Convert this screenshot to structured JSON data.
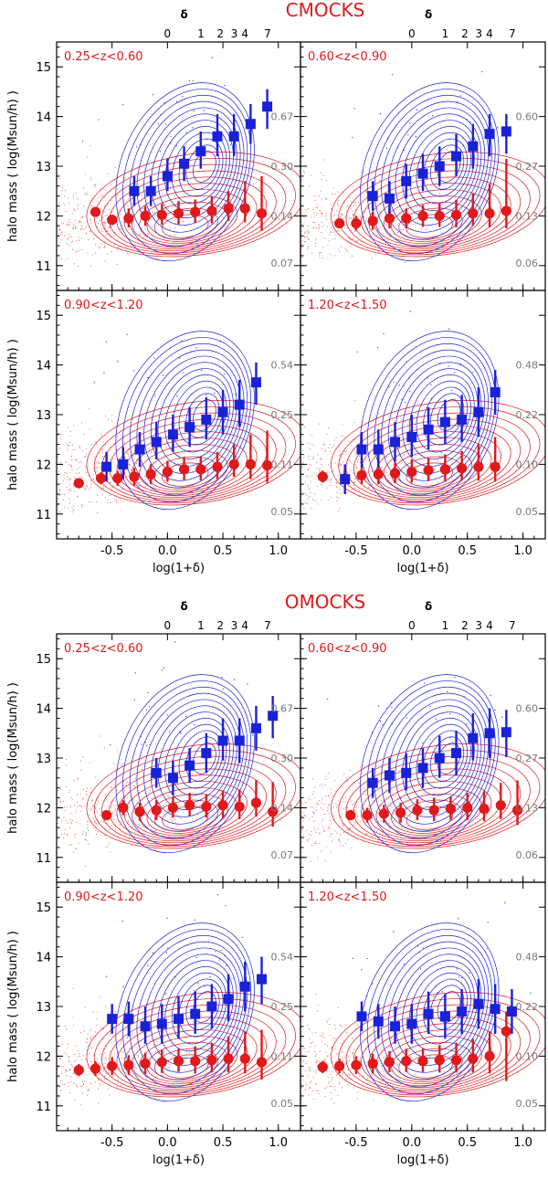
{
  "colors": {
    "halo_color": "#e0191b",
    "central_color": "#1a22d8",
    "axis_color": "#000000",
    "level_text_color": "#777777",
    "title_color": "#e0191b"
  },
  "figures": [
    {
      "title": "CMOCKS",
      "delta_label": "δ",
      "delta_ticks": [
        "0",
        "1",
        "2",
        "3",
        "4",
        "7"
      ],
      "delta_tick_x": [
        0.0,
        0.301,
        0.477,
        0.602,
        0.699,
        0.903
      ],
      "ylabel": "halo mass ( log(Msun/h) )",
      "xlabel": "log(1+δ)",
      "xtick_labels": [
        "-0.5",
        "0.0",
        "0.5",
        "1.0"
      ],
      "ytick_labels": [
        "11",
        "12",
        "13",
        "14",
        "15"
      ]
    },
    {
      "title": "OMOCKS",
      "delta_label": "δ",
      "delta_ticks": [
        "0",
        "1",
        "2",
        "3",
        "4",
        "7"
      ],
      "delta_tick_x": [
        0.0,
        0.301,
        0.477,
        0.602,
        0.699,
        0.903
      ],
      "ylabel": "halo mass ( log(Msun/h) )",
      "xlabel": "log(1+δ)",
      "xtick_labels": [
        "-0.5",
        "0.0",
        "0.5",
        "1.0"
      ],
      "ytick_labels": [
        "11",
        "12",
        "13",
        "14",
        "15"
      ]
    }
  ],
  "chart_data": [
    {
      "type": "scatter",
      "figure": "CMOCKS",
      "panel": "0.25<z<0.60",
      "xlabel": "log(1+δ)",
      "ylabel": "halo mass ( log(Msun/h) )",
      "xlim": [
        -1.0,
        1.2
      ],
      "ylim": [
        10.5,
        15.5
      ],
      "contour_levels": [
        "0.67",
        "0.30",
        "0.14",
        "0.07"
      ],
      "series": [
        {
          "name": "red",
          "marker": "circle",
          "x": [
            -0.65,
            -0.5,
            -0.35,
            -0.2,
            -0.05,
            0.1,
            0.25,
            0.4,
            0.55,
            0.7,
            0.85
          ],
          "y": [
            12.08,
            11.92,
            11.95,
            12.0,
            12.02,
            12.05,
            12.08,
            12.1,
            12.15,
            12.15,
            12.05
          ],
          "err_lo": [
            0.0,
            0.0,
            0.18,
            0.2,
            0.2,
            0.22,
            0.22,
            0.25,
            0.25,
            0.28,
            0.35
          ],
          "err_hi": [
            0.0,
            0.0,
            0.2,
            0.2,
            0.22,
            0.25,
            0.25,
            0.3,
            0.35,
            0.55,
            0.75
          ]
        },
        {
          "name": "blue",
          "marker": "square",
          "x": [
            -0.3,
            -0.15,
            0.0,
            0.15,
            0.3,
            0.45,
            0.6,
            0.75,
            0.9
          ],
          "y": [
            12.5,
            12.5,
            12.8,
            13.05,
            13.3,
            13.6,
            13.6,
            13.85,
            14.2
          ],
          "err_lo": [
            0.3,
            0.3,
            0.3,
            0.35,
            0.35,
            0.4,
            0.4,
            0.4,
            0.45
          ],
          "err_hi": [
            0.3,
            0.3,
            0.35,
            0.35,
            0.4,
            0.45,
            0.45,
            0.4,
            0.35
          ]
        }
      ]
    },
    {
      "type": "scatter",
      "figure": "CMOCKS",
      "panel": "0.60<z<0.90",
      "xlabel": "log(1+δ)",
      "ylabel": "halo mass ( log(Msun/h) )",
      "xlim": [
        -1.0,
        1.2
      ],
      "ylim": [
        10.5,
        15.5
      ],
      "contour_levels": [
        "0.60",
        "0.27",
        "0.13",
        "0.06"
      ],
      "series": [
        {
          "name": "red",
          "marker": "circle",
          "x": [
            -0.65,
            -0.5,
            -0.35,
            -0.2,
            -0.05,
            0.1,
            0.25,
            0.4,
            0.55,
            0.7,
            0.85
          ],
          "y": [
            11.85,
            11.85,
            11.9,
            11.95,
            11.95,
            12.0,
            12.0,
            12.02,
            12.05,
            12.05,
            12.1
          ],
          "err_lo": [
            0.1,
            0.15,
            0.18,
            0.2,
            0.2,
            0.22,
            0.22,
            0.25,
            0.25,
            0.28,
            0.35
          ],
          "err_hi": [
            0.1,
            0.15,
            0.18,
            0.2,
            0.2,
            0.22,
            0.25,
            0.3,
            0.4,
            0.6,
            1.05
          ]
        },
        {
          "name": "blue",
          "marker": "square",
          "x": [
            -0.35,
            -0.2,
            -0.05,
            0.1,
            0.25,
            0.4,
            0.55,
            0.7,
            0.85
          ],
          "y": [
            12.4,
            12.35,
            12.7,
            12.85,
            13.0,
            13.2,
            13.4,
            13.65,
            13.7
          ],
          "err_lo": [
            0.3,
            0.3,
            0.35,
            0.35,
            0.4,
            0.4,
            0.45,
            0.45,
            0.45
          ],
          "err_hi": [
            0.3,
            0.35,
            0.35,
            0.4,
            0.4,
            0.45,
            0.45,
            0.4,
            0.35
          ]
        }
      ]
    },
    {
      "type": "scatter",
      "figure": "CMOCKS",
      "panel": "0.90<z<1.20",
      "xlabel": "log(1+δ)",
      "ylabel": "halo mass ( log(Msun/h) )",
      "xlim": [
        -1.0,
        1.2
      ],
      "ylim": [
        10.5,
        15.5
      ],
      "contour_levels": [
        "0.54",
        "0.25",
        "0.11",
        "0.05"
      ],
      "series": [
        {
          "name": "red",
          "marker": "circle",
          "x": [
            -0.8,
            -0.6,
            -0.45,
            -0.3,
            -0.15,
            0.0,
            0.15,
            0.3,
            0.45,
            0.6,
            0.75,
            0.9
          ],
          "y": [
            11.62,
            11.72,
            11.72,
            11.75,
            11.8,
            11.85,
            11.9,
            11.9,
            11.95,
            12.0,
            12.0,
            11.98
          ],
          "err_lo": [
            0.1,
            0.12,
            0.15,
            0.18,
            0.2,
            0.2,
            0.22,
            0.22,
            0.25,
            0.25,
            0.3,
            0.35
          ],
          "err_hi": [
            0.1,
            0.12,
            0.15,
            0.18,
            0.2,
            0.22,
            0.25,
            0.25,
            0.3,
            0.4,
            0.6,
            0.7
          ]
        },
        {
          "name": "blue",
          "marker": "square",
          "x": [
            -0.55,
            -0.4,
            -0.25,
            -0.1,
            0.05,
            0.2,
            0.35,
            0.5,
            0.65,
            0.8
          ],
          "y": [
            11.95,
            12.0,
            12.3,
            12.45,
            12.6,
            12.75,
            12.9,
            13.05,
            13.2,
            13.65
          ],
          "err_lo": [
            0.3,
            0.3,
            0.35,
            0.35,
            0.35,
            0.4,
            0.4,
            0.45,
            0.45,
            0.45
          ],
          "err_hi": [
            0.3,
            0.35,
            0.35,
            0.4,
            0.4,
            0.4,
            0.45,
            0.45,
            0.5,
            0.4
          ]
        }
      ]
    },
    {
      "type": "scatter",
      "figure": "CMOCKS",
      "panel": "1.20<z<1.50",
      "xlabel": "log(1+δ)",
      "ylabel": "halo mass ( log(Msun/h) )",
      "xlim": [
        -1.0,
        1.2
      ],
      "ylim": [
        10.5,
        15.5
      ],
      "contour_levels": [
        "0.48",
        "0.22",
        "0.10",
        "0.05"
      ],
      "series": [
        {
          "name": "red",
          "marker": "circle",
          "x": [
            -0.8,
            -0.6,
            -0.45,
            -0.3,
            -0.15,
            0.0,
            0.15,
            0.3,
            0.45,
            0.6,
            0.75
          ],
          "y": [
            11.75,
            11.72,
            11.78,
            11.8,
            11.82,
            11.85,
            11.88,
            11.9,
            11.92,
            11.95,
            11.95
          ],
          "err_lo": [
            0.12,
            0.15,
            0.18,
            0.2,
            0.2,
            0.22,
            0.22,
            0.25,
            0.25,
            0.28,
            0.3
          ],
          "err_hi": [
            0.12,
            0.15,
            0.18,
            0.2,
            0.22,
            0.25,
            0.25,
            0.3,
            0.35,
            0.45,
            0.6
          ]
        },
        {
          "name": "blue",
          "marker": "square",
          "x": [
            -0.6,
            -0.45,
            -0.3,
            -0.15,
            0.0,
            0.15,
            0.3,
            0.45,
            0.6,
            0.75
          ],
          "y": [
            11.7,
            12.3,
            12.3,
            12.45,
            12.55,
            12.7,
            12.85,
            12.9,
            13.05,
            13.45
          ],
          "err_lo": [
            0.3,
            0.35,
            0.35,
            0.4,
            0.4,
            0.4,
            0.45,
            0.45,
            0.5,
            0.45
          ],
          "err_hi": [
            0.3,
            0.35,
            0.4,
            0.4,
            0.45,
            0.45,
            0.45,
            0.5,
            0.5,
            0.45
          ]
        }
      ]
    },
    {
      "type": "scatter",
      "figure": "OMOCKS",
      "panel": "0.25<z<0.60",
      "xlabel": "log(1+δ)",
      "ylabel": "halo mass ( log(Msun/h) )",
      "xlim": [
        -1.0,
        1.2
      ],
      "ylim": [
        10.5,
        15.5
      ],
      "contour_levels": [
        "0.67",
        "0.30",
        "0.14",
        "0.07"
      ],
      "series": [
        {
          "name": "red",
          "marker": "circle",
          "x": [
            -0.55,
            -0.4,
            -0.25,
            -0.1,
            0.05,
            0.2,
            0.35,
            0.5,
            0.65,
            0.8,
            0.95
          ],
          "y": [
            11.85,
            12.0,
            11.92,
            11.95,
            12.0,
            12.05,
            12.02,
            12.05,
            12.02,
            12.1,
            11.92
          ],
          "err_lo": [
            0.1,
            0.15,
            0.18,
            0.2,
            0.2,
            0.22,
            0.22,
            0.25,
            0.25,
            0.28,
            0.3
          ],
          "err_hi": [
            0.1,
            0.15,
            0.18,
            0.2,
            0.22,
            0.25,
            0.25,
            0.3,
            0.35,
            0.45,
            0.6
          ]
        },
        {
          "name": "blue",
          "marker": "square",
          "x": [
            -0.1,
            0.05,
            0.2,
            0.35,
            0.5,
            0.65,
            0.8,
            0.95
          ],
          "y": [
            12.7,
            12.6,
            12.85,
            13.1,
            13.35,
            13.35,
            13.6,
            13.85
          ],
          "err_lo": [
            0.3,
            0.35,
            0.35,
            0.4,
            0.4,
            0.45,
            0.45,
            0.45
          ],
          "err_hi": [
            0.3,
            0.35,
            0.35,
            0.4,
            0.45,
            0.45,
            0.45,
            0.4
          ]
        }
      ]
    },
    {
      "type": "scatter",
      "figure": "OMOCKS",
      "panel": "0.60<z<0.90",
      "xlabel": "log(1+δ)",
      "ylabel": "halo mass ( log(Msun/h) )",
      "xlim": [
        -1.0,
        1.2
      ],
      "ylim": [
        10.5,
        15.5
      ],
      "contour_levels": [
        "0.60",
        "0.27",
        "0.13",
        "0.06"
      ],
      "series": [
        {
          "name": "red",
          "marker": "circle",
          "x": [
            -0.55,
            -0.4,
            -0.25,
            -0.1,
            0.05,
            0.2,
            0.35,
            0.5,
            0.65,
            0.8,
            0.95
          ],
          "y": [
            11.85,
            11.85,
            11.88,
            11.9,
            11.95,
            11.95,
            11.98,
            12.0,
            11.98,
            12.05,
            11.95
          ],
          "err_lo": [
            0.1,
            0.15,
            0.18,
            0.2,
            0.2,
            0.22,
            0.22,
            0.25,
            0.25,
            0.28,
            0.3
          ],
          "err_hi": [
            0.1,
            0.15,
            0.18,
            0.2,
            0.22,
            0.25,
            0.25,
            0.3,
            0.35,
            0.45,
            0.6
          ]
        },
        {
          "name": "blue",
          "marker": "square",
          "x": [
            -0.35,
            -0.2,
            -0.05,
            0.1,
            0.25,
            0.4,
            0.55,
            0.7,
            0.85
          ],
          "y": [
            12.5,
            12.65,
            12.7,
            12.8,
            13.0,
            13.1,
            13.4,
            13.5,
            13.52
          ],
          "err_lo": [
            0.3,
            0.35,
            0.35,
            0.4,
            0.4,
            0.45,
            0.45,
            0.5,
            0.5
          ],
          "err_hi": [
            0.3,
            0.35,
            0.4,
            0.4,
            0.45,
            0.45,
            0.5,
            0.5,
            0.45
          ]
        }
      ]
    },
    {
      "type": "scatter",
      "figure": "OMOCKS",
      "panel": "0.90<z<1.20",
      "xlabel": "log(1+δ)",
      "ylabel": "halo mass ( log(Msun/h) )",
      "xlim": [
        -1.0,
        1.2
      ],
      "ylim": [
        10.5,
        15.5
      ],
      "contour_levels": [
        "0.54",
        "0.25",
        "0.11",
        "0.05"
      ],
      "series": [
        {
          "name": "red",
          "marker": "circle",
          "x": [
            -0.8,
            -0.65,
            -0.5,
            -0.35,
            -0.2,
            -0.05,
            0.1,
            0.25,
            0.4,
            0.55,
            0.7,
            0.85
          ],
          "y": [
            11.72,
            11.75,
            11.8,
            11.82,
            11.85,
            11.88,
            11.9,
            11.9,
            11.92,
            11.95,
            11.95,
            11.88
          ],
          "err_lo": [
            0.12,
            0.15,
            0.18,
            0.2,
            0.2,
            0.22,
            0.22,
            0.25,
            0.25,
            0.28,
            0.3,
            0.35
          ],
          "err_hi": [
            0.12,
            0.15,
            0.18,
            0.2,
            0.22,
            0.25,
            0.25,
            0.3,
            0.35,
            0.45,
            0.55,
            0.65
          ]
        },
        {
          "name": "blue",
          "marker": "square",
          "x": [
            -0.5,
            -0.35,
            -0.2,
            -0.05,
            0.1,
            0.25,
            0.4,
            0.55,
            0.7,
            0.85
          ],
          "y": [
            12.75,
            12.75,
            12.6,
            12.65,
            12.75,
            12.85,
            13.0,
            13.15,
            13.4,
            13.55
          ],
          "err_lo": [
            0.3,
            0.35,
            0.35,
            0.4,
            0.4,
            0.4,
            0.45,
            0.45,
            0.5,
            0.5
          ],
          "err_hi": [
            0.3,
            0.35,
            0.4,
            0.4,
            0.45,
            0.45,
            0.45,
            0.5,
            0.5,
            0.45
          ]
        }
      ]
    },
    {
      "type": "scatter",
      "figure": "OMOCKS",
      "panel": "1.20<z<1.50",
      "xlabel": "log(1+δ)",
      "ylabel": "halo mass ( log(Msun/h) )",
      "xlim": [
        -1.0,
        1.2
      ],
      "ylim": [
        10.5,
        15.5
      ],
      "contour_levels": [
        "0.48",
        "0.22",
        "0.10",
        "0.05"
      ],
      "series": [
        {
          "name": "red",
          "marker": "circle",
          "x": [
            -0.8,
            -0.65,
            -0.5,
            -0.35,
            -0.2,
            -0.05,
            0.1,
            0.25,
            0.4,
            0.55,
            0.7,
            0.85
          ],
          "y": [
            11.78,
            11.8,
            11.82,
            11.85,
            11.88,
            11.9,
            11.9,
            11.92,
            11.92,
            11.95,
            12.0,
            12.5
          ],
          "err_lo": [
            0.12,
            0.15,
            0.18,
            0.2,
            0.2,
            0.22,
            0.22,
            0.25,
            0.25,
            0.28,
            0.35,
            1.0
          ],
          "err_hi": [
            0.12,
            0.15,
            0.18,
            0.2,
            0.22,
            0.25,
            0.25,
            0.3,
            0.35,
            0.4,
            0.5,
            0.4
          ]
        },
        {
          "name": "blue",
          "marker": "square",
          "x": [
            -0.45,
            -0.3,
            -0.15,
            0.0,
            0.15,
            0.3,
            0.45,
            0.6,
            0.75,
            0.9
          ],
          "y": [
            12.8,
            12.7,
            12.6,
            12.65,
            12.85,
            12.8,
            12.9,
            13.05,
            12.95,
            12.9
          ],
          "err_lo": [
            0.3,
            0.35,
            0.35,
            0.4,
            0.4,
            0.45,
            0.45,
            0.5,
            0.5,
            0.45
          ],
          "err_hi": [
            0.3,
            0.35,
            0.4,
            0.4,
            0.45,
            0.45,
            0.45,
            0.5,
            0.5,
            0.45
          ]
        }
      ]
    }
  ]
}
